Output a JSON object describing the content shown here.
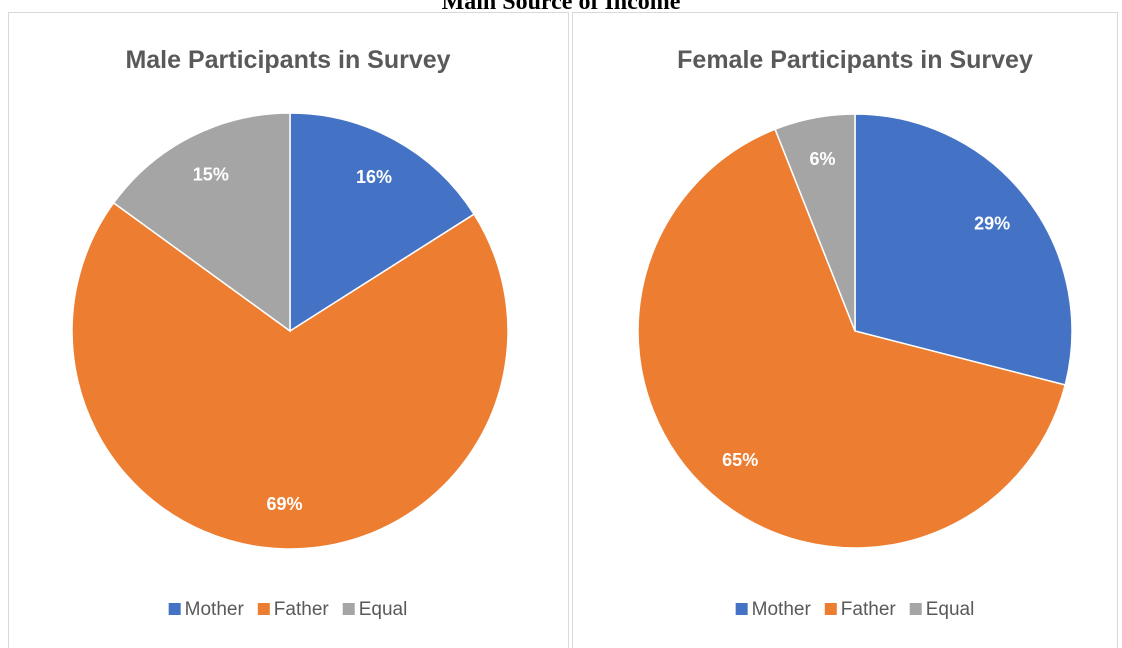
{
  "title": "Main Source of Income",
  "chart_data": [
    {
      "type": "pie",
      "title": "Male Participants in Survey",
      "categories": [
        "Mother",
        "Father",
        "Equal"
      ],
      "values": [
        16,
        69,
        15
      ],
      "value_labels": [
        "16%",
        "69%",
        "15%"
      ],
      "colors": [
        "#4472c4",
        "#ed7d31",
        "#a5a5a5"
      ],
      "legend": "bottom"
    },
    {
      "type": "pie",
      "title": "Female Participants in Survey",
      "categories": [
        "Mother",
        "Father",
        "Equal"
      ],
      "values": [
        29,
        65,
        6
      ],
      "value_labels": [
        "29%",
        "65%",
        "6%"
      ],
      "colors": [
        "#4472c4",
        "#ed7d31",
        "#a5a5a5"
      ],
      "legend": "bottom"
    }
  ]
}
